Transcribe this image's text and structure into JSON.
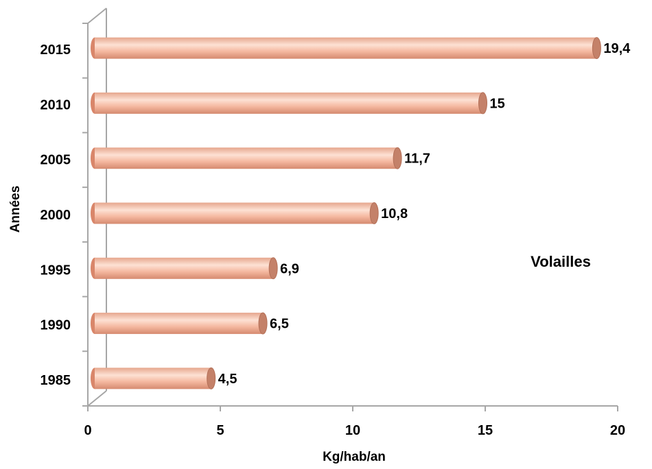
{
  "chart_data": {
    "type": "bar",
    "orientation": "horizontal",
    "style": "3d-cylinder",
    "categories": [
      "1985",
      "1990",
      "1995",
      "2000",
      "2005",
      "2010",
      "2015"
    ],
    "values": [
      4.5,
      6.5,
      6.9,
      10.8,
      11.7,
      15,
      19.4
    ],
    "data_labels": [
      "4,5",
      "6,5",
      "6,9",
      "10,8",
      "11,7",
      "15",
      "19,4"
    ],
    "xlabel": "Kg/hab/an",
    "ylabel": "Années",
    "xlim": [
      0,
      20
    ],
    "xticks": [
      0,
      5,
      10,
      15,
      20
    ],
    "xtick_labels": [
      "0",
      "5",
      "10",
      "15",
      "20"
    ],
    "annotation": "Volailles",
    "grid": false,
    "colors": {
      "bar_fill": "#f2b49c",
      "bar_highlight": "#fde1d4",
      "bar_shadow": "#d9866a",
      "bar_cap": "#c48169",
      "axis": "#a6a6a6"
    }
  }
}
